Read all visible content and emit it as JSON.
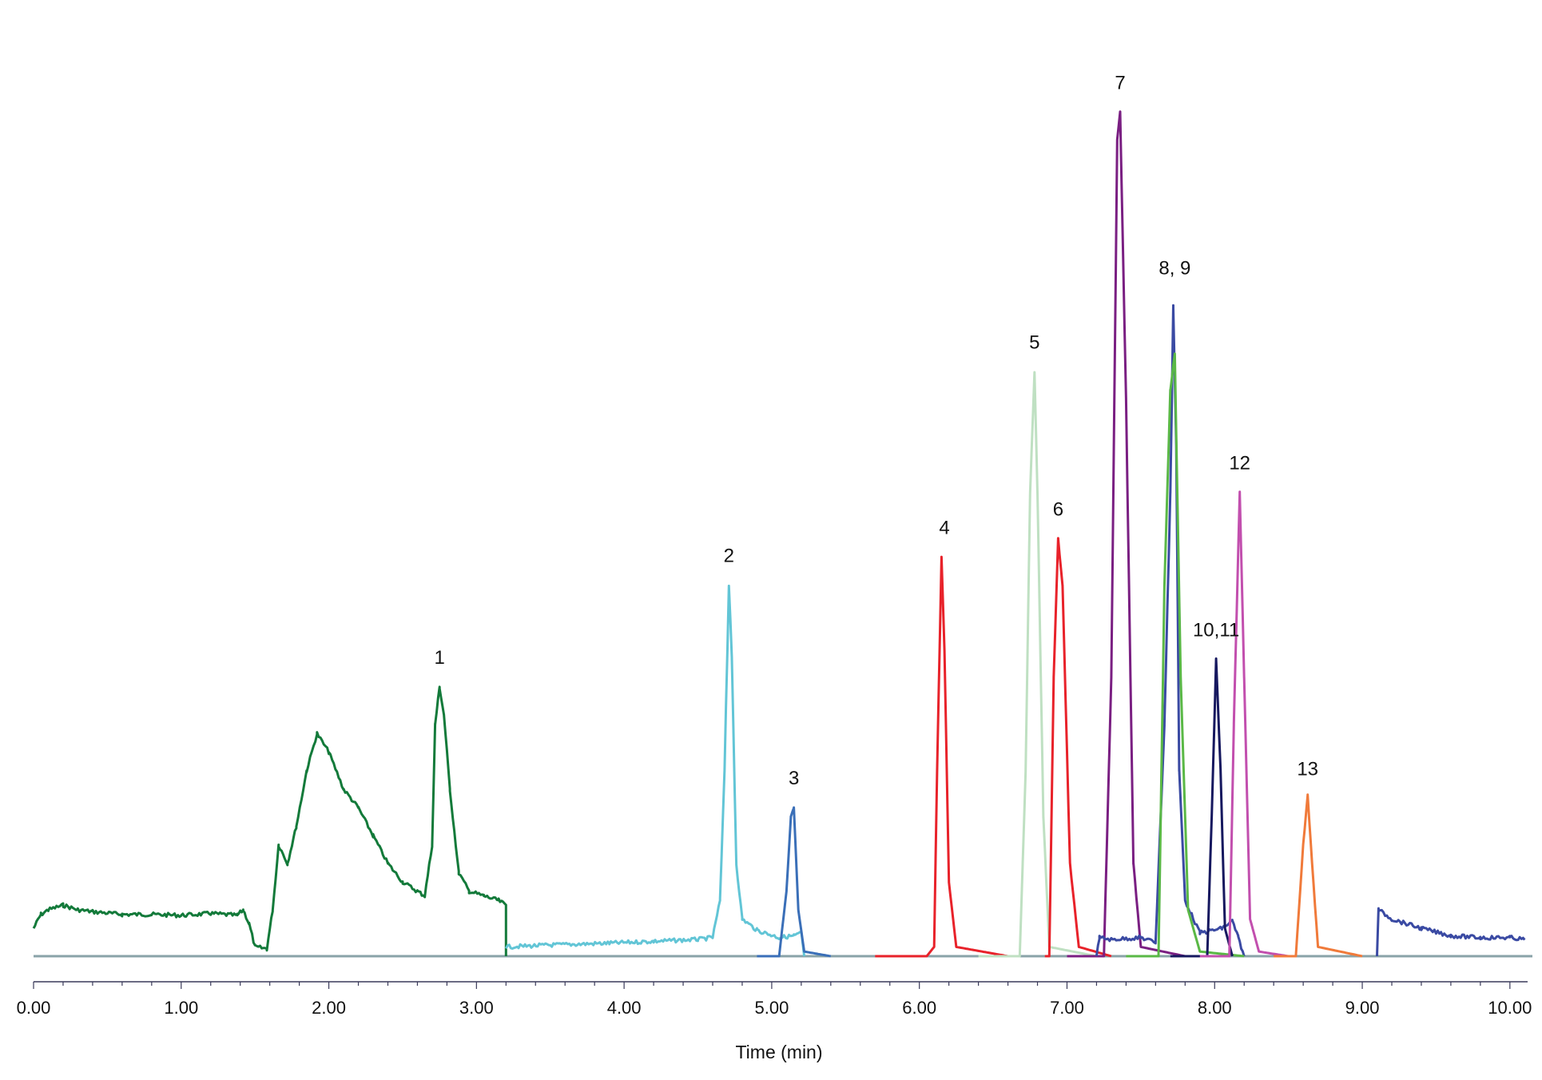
{
  "chart_data": {
    "type": "line",
    "title": "",
    "xlabel": "Time (min)",
    "ylabel": "",
    "xlim": [
      0,
      10.12
    ],
    "ylim": [
      -0.02,
      1.0
    ],
    "x_ticks": [
      "0.00",
      "1.00",
      "2.00",
      "3.00",
      "4.00",
      "5.00",
      "6.00",
      "7.00",
      "8.00",
      "9.00",
      "10.00"
    ],
    "grid": false,
    "legend": "none",
    "baseline_color": "#8aa3a8",
    "axis_color": "#3a3a5a",
    "series": [
      {
        "color": "#137a3a",
        "kind": "trace",
        "points": [
          [
            0.0,
            0.03
          ],
          [
            0.05,
            0.045
          ],
          [
            0.1,
            0.05
          ],
          [
            0.2,
            0.055
          ],
          [
            0.3,
            0.05
          ],
          [
            0.4,
            0.048
          ],
          [
            0.6,
            0.045
          ],
          [
            0.8,
            0.045
          ],
          [
            1.0,
            0.044
          ],
          [
            1.2,
            0.046
          ],
          [
            1.38,
            0.044
          ],
          [
            1.42,
            0.05
          ],
          [
            1.46,
            0.035
          ],
          [
            1.5,
            0.01
          ],
          [
            1.58,
            0.008
          ],
          [
            1.62,
            0.05
          ],
          [
            1.66,
            0.12
          ],
          [
            1.72,
            0.1
          ],
          [
            1.78,
            0.14
          ],
          [
            1.85,
            0.2
          ],
          [
            1.92,
            0.24
          ],
          [
            2.0,
            0.22
          ],
          [
            2.1,
            0.18
          ],
          [
            2.2,
            0.16
          ],
          [
            2.3,
            0.13
          ],
          [
            2.4,
            0.1
          ],
          [
            2.5,
            0.08
          ],
          [
            2.6,
            0.07
          ],
          [
            2.65,
            0.065
          ],
          [
            2.7,
            0.12
          ],
          [
            2.72,
            0.25
          ],
          [
            2.75,
            0.29
          ],
          [
            2.78,
            0.26
          ],
          [
            2.82,
            0.18
          ],
          [
            2.88,
            0.09
          ],
          [
            2.95,
            0.07
          ],
          [
            3.05,
            0.065
          ],
          [
            3.15,
            0.06
          ],
          [
            3.2,
            0.055
          ],
          [
            3.2,
            0.0
          ]
        ]
      },
      {
        "color": "#62c5d6",
        "kind": "trace",
        "points": [
          [
            3.2,
            0.01
          ],
          [
            3.5,
            0.012
          ],
          [
            3.9,
            0.014
          ],
          [
            4.2,
            0.016
          ],
          [
            4.5,
            0.018
          ],
          [
            4.6,
            0.02
          ],
          [
            4.65,
            0.06
          ],
          [
            4.68,
            0.2
          ],
          [
            4.71,
            0.4
          ],
          [
            4.73,
            0.32
          ],
          [
            4.76,
            0.1
          ],
          [
            4.8,
            0.04
          ],
          [
            4.9,
            0.028
          ],
          [
            5.05,
            0.02
          ],
          [
            5.15,
            0.022
          ],
          [
            5.2,
            0.025
          ],
          [
            5.22,
            0.0
          ]
        ]
      },
      {
        "color": "#3a6fb8",
        "kind": "peak",
        "points": [
          [
            4.9,
            0.0
          ],
          [
            5.05,
            0.0
          ],
          [
            5.1,
            0.07
          ],
          [
            5.13,
            0.15
          ],
          [
            5.15,
            0.16
          ],
          [
            5.18,
            0.05
          ],
          [
            5.22,
            0.005
          ],
          [
            5.4,
            0.0
          ]
        ]
      },
      {
        "color": "#e8222a",
        "kind": "peak",
        "points": [
          [
            5.7,
            0.0
          ],
          [
            6.05,
            0.0
          ],
          [
            6.1,
            0.01
          ],
          [
            6.12,
            0.2
          ],
          [
            6.15,
            0.43
          ],
          [
            6.17,
            0.33
          ],
          [
            6.2,
            0.08
          ],
          [
            6.25,
            0.01
          ],
          [
            6.6,
            0.0
          ]
        ]
      },
      {
        "color": "#bfe0c2",
        "kind": "peak",
        "points": [
          [
            6.4,
            0.0
          ],
          [
            6.68,
            0.0
          ],
          [
            6.72,
            0.2
          ],
          [
            6.75,
            0.5
          ],
          [
            6.78,
            0.63
          ],
          [
            6.8,
            0.5
          ],
          [
            6.84,
            0.15
          ],
          [
            6.88,
            0.01
          ],
          [
            7.2,
            0.0
          ]
        ]
      },
      {
        "color": "#e8222a",
        "kind": "peak",
        "points": [
          [
            6.85,
            0.0
          ],
          [
            6.88,
            0.0
          ],
          [
            6.91,
            0.3
          ],
          [
            6.94,
            0.45
          ],
          [
            6.97,
            0.4
          ],
          [
            7.02,
            0.1
          ],
          [
            7.08,
            0.01
          ],
          [
            7.3,
            0.0
          ]
        ]
      },
      {
        "color": "#7a1f82",
        "kind": "peak",
        "points": [
          [
            7.0,
            0.0
          ],
          [
            7.25,
            0.0
          ],
          [
            7.3,
            0.3
          ],
          [
            7.34,
            0.88
          ],
          [
            7.36,
            0.91
          ],
          [
            7.4,
            0.6
          ],
          [
            7.45,
            0.1
          ],
          [
            7.5,
            0.01
          ],
          [
            7.8,
            0.0
          ]
        ]
      },
      {
        "color": "#3a4aa3",
        "kind": "trace",
        "points": [
          [
            7.2,
            0.0
          ],
          [
            7.22,
            0.02
          ],
          [
            7.3,
            0.018
          ],
          [
            7.5,
            0.02
          ],
          [
            7.6,
            0.015
          ],
          [
            7.66,
            0.25
          ],
          [
            7.7,
            0.5
          ],
          [
            7.72,
            0.7
          ],
          [
            7.74,
            0.55
          ],
          [
            7.76,
            0.2
          ],
          [
            7.8,
            0.06
          ],
          [
            7.9,
            0.025
          ],
          [
            8.05,
            0.03
          ],
          [
            8.12,
            0.038
          ],
          [
            8.16,
            0.02
          ],
          [
            8.2,
            0.0
          ]
        ]
      },
      {
        "color": "#5ab846",
        "kind": "peak",
        "points": [
          [
            7.4,
            0.0
          ],
          [
            7.62,
            0.0
          ],
          [
            7.66,
            0.4
          ],
          [
            7.7,
            0.61
          ],
          [
            7.73,
            0.65
          ],
          [
            7.77,
            0.3
          ],
          [
            7.82,
            0.05
          ],
          [
            7.9,
            0.005
          ],
          [
            8.2,
            0.0
          ]
        ]
      },
      {
        "color": "#16185f",
        "kind": "peak",
        "points": [
          [
            7.7,
            0.0
          ],
          [
            7.95,
            0.0
          ],
          [
            7.98,
            0.15
          ],
          [
            8.01,
            0.32
          ],
          [
            8.04,
            0.2
          ],
          [
            8.07,
            0.03
          ],
          [
            8.12,
            0.0
          ]
        ]
      },
      {
        "color": "#c24fae",
        "kind": "peak",
        "points": [
          [
            7.9,
            0.0
          ],
          [
            8.1,
            0.0
          ],
          [
            8.13,
            0.25
          ],
          [
            8.17,
            0.5
          ],
          [
            8.2,
            0.3
          ],
          [
            8.24,
            0.04
          ],
          [
            8.3,
            0.005
          ],
          [
            8.5,
            0.0
          ]
        ]
      },
      {
        "color": "#f07a3a",
        "kind": "peak",
        "points": [
          [
            8.4,
            0.0
          ],
          [
            8.55,
            0.0
          ],
          [
            8.6,
            0.12
          ],
          [
            8.63,
            0.174
          ],
          [
            8.66,
            0.1
          ],
          [
            8.7,
            0.01
          ],
          [
            9.0,
            0.0
          ]
        ]
      },
      {
        "color": "#3a4aa3",
        "kind": "trace",
        "points": [
          [
            9.1,
            0.0
          ],
          [
            9.11,
            0.05
          ],
          [
            9.2,
            0.04
          ],
          [
            9.4,
            0.03
          ],
          [
            9.6,
            0.022
          ],
          [
            9.8,
            0.02
          ],
          [
            10.0,
            0.02
          ],
          [
            10.1,
            0.018
          ]
        ]
      }
    ],
    "annotations": [
      {
        "label": "1",
        "x": 2.75,
        "y": 0.31
      },
      {
        "label": "2",
        "x": 4.71,
        "y": 0.42
      },
      {
        "label": "3",
        "x": 5.15,
        "y": 0.18
      },
      {
        "label": "4",
        "x": 6.17,
        "y": 0.45
      },
      {
        "label": "5",
        "x": 6.78,
        "y": 0.65
      },
      {
        "label": "6",
        "x": 6.94,
        "y": 0.47
      },
      {
        "label": "7",
        "x": 7.36,
        "y": 0.93
      },
      {
        "label": "8, 9",
        "x": 7.73,
        "y": 0.73
      },
      {
        "label": "10,11",
        "x": 8.01,
        "y": 0.34
      },
      {
        "label": "12",
        "x": 8.17,
        "y": 0.52
      },
      {
        "label": "13",
        "x": 8.63,
        "y": 0.19
      }
    ]
  }
}
